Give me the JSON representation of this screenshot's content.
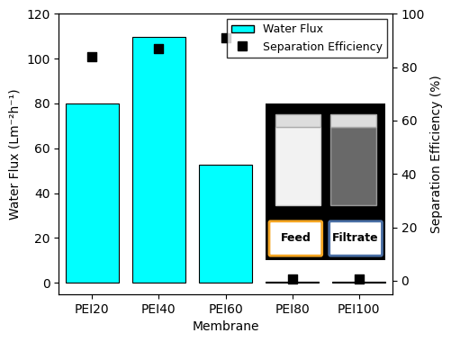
{
  "chart_data": {
    "type": "bar",
    "x_label": "Membrane",
    "y_label": "Water Flux (Lm⁻²h⁻¹)",
    "y2_label": "Separation Efficiency (%)",
    "categories": [
      "PEI20",
      "PEI40",
      "PEI60",
      "PEI80",
      "PEI100"
    ],
    "series": [
      {
        "name": "Water Flux",
        "type": "bar",
        "color": "#00ffff",
        "values": [
          80,
          109.5,
          52.5,
          0.5,
          0.5
        ]
      },
      {
        "name": "Separation Efficiency",
        "type": "scatter",
        "marker": "square",
        "color": "#000000",
        "axis": "y2",
        "values": [
          84,
          87,
          91,
          0.5,
          0.5
        ]
      }
    ],
    "ylim": [
      -5,
      120
    ],
    "yticks": [
      0,
      20,
      40,
      60,
      80,
      100,
      120
    ],
    "y2lim": [
      -5,
      100
    ],
    "y2ticks": [
      0,
      20,
      40,
      60,
      80,
      100
    ],
    "legend": "upper right",
    "annotations": [
      "Feed",
      "Filtrate"
    ]
  }
}
